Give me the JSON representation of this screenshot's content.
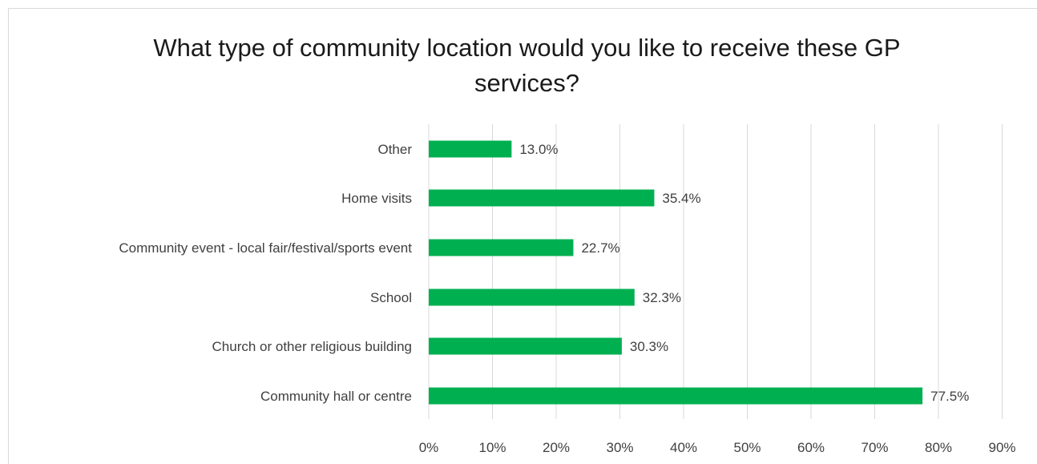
{
  "chart_data": {
    "type": "bar",
    "orientation": "horizontal",
    "title": "What type of community location would you like to receive these GP services?",
    "categories": [
      "Other",
      "Home visits",
      "Community event - local fair/festival/sports event",
      "School",
      "Church or other religious building",
      "Community hall or centre"
    ],
    "values": [
      13.0,
      35.4,
      22.7,
      32.3,
      30.3,
      77.5
    ],
    "value_labels": [
      "13.0%",
      "35.4%",
      "22.7%",
      "32.3%",
      "30.3%",
      "77.5%"
    ],
    "xlim": [
      0,
      90
    ],
    "xticks": [
      "0%",
      "10%",
      "20%",
      "30%",
      "40%",
      "50%",
      "60%",
      "70%",
      "80%",
      "90%"
    ],
    "grid": "vertical",
    "bar_color": "#00b050",
    "grid_color": "#d9d9d9",
    "legend": "none"
  }
}
